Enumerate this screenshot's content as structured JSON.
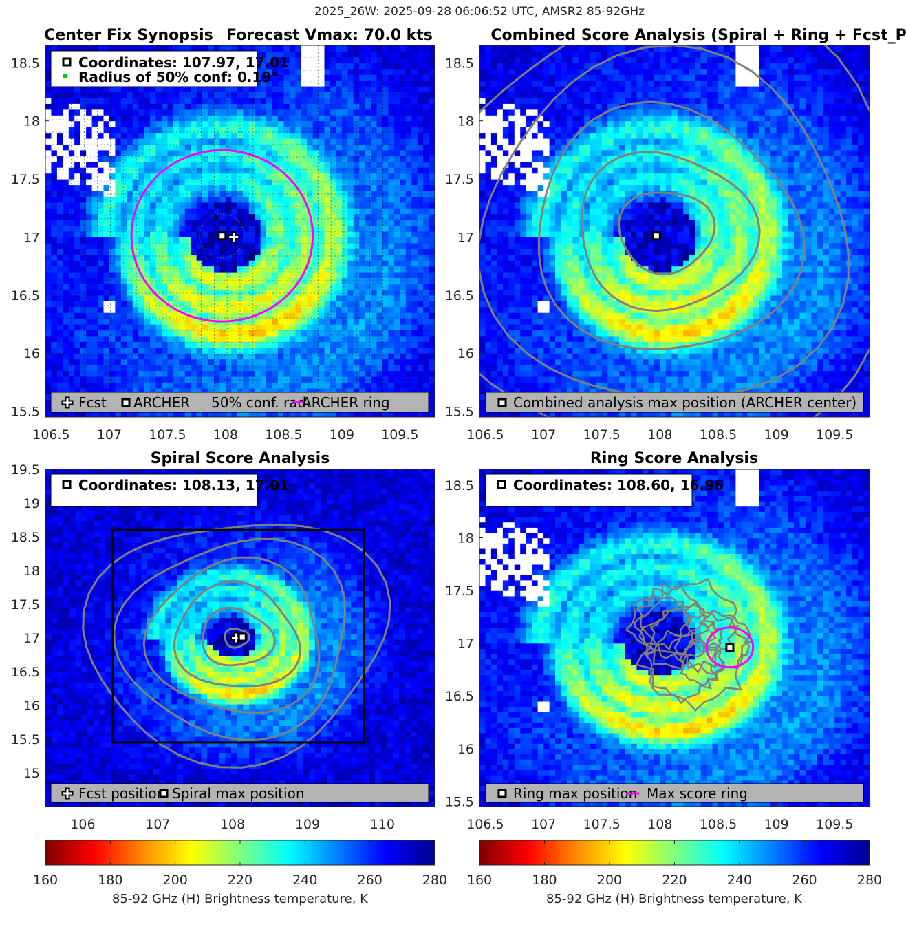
{
  "figure": {
    "suptitle": "2025_26W: 2025-09-28 06:06:52 UTC, AMSR2 85-92GHz"
  },
  "colorbar": {
    "ticks": [
      "160",
      "180",
      "200",
      "220",
      "240",
      "260",
      "280"
    ],
    "label": "85-92 GHz (H) Brightness temperature, K",
    "stops": [
      "#7f0000",
      "#ff0000",
      "#ff8c00",
      "#ffff00",
      "#7fff7f",
      "#00ffff",
      "#0080ff",
      "#0000ff",
      "#00008f"
    ]
  },
  "colors": {
    "magenta": "#ff00ff",
    "contour": "#808080",
    "legend_bg": "#b3b3b3",
    "marker_green": "#00cc00"
  },
  "chart_data": [
    {
      "type": "heatmap",
      "title_left": "Center Fix Synopsis",
      "title_right": "Forecast Vmax: 70.0 kts",
      "xlim": [
        106.45,
        109.8
      ],
      "ylim": [
        15.45,
        18.65
      ],
      "xticks": [
        "106.5",
        "107",
        "107.5",
        "108",
        "108.5",
        "109",
        "109.5"
      ],
      "yticks": [
        "15.5",
        "16",
        "16.5",
        "17",
        "17.5",
        "18",
        "18.5"
      ],
      "info": {
        "coords": "Coordinates: 107.97, 17.01",
        "radius": "Radius of 50% conf: 0.19°"
      },
      "legend": [
        "Fcst",
        "ARCHER",
        "50% conf. rad.",
        "ARCHER ring"
      ],
      "archer_center": [
        107.97,
        17.01
      ],
      "forecast_position": [
        108.07,
        17.0
      ],
      "confidence_radius_deg": 0.19,
      "ring_radius_deg": 0.78
    },
    {
      "type": "heatmap",
      "title": "Combined Score Analysis (Spiral + Ring + Fcst_Pe",
      "xlim": [
        106.45,
        109.8
      ],
      "ylim": [
        15.45,
        18.65
      ],
      "xticks": [
        "106.5",
        "107",
        "107.5",
        "108",
        "108.5",
        "109",
        "109.5"
      ],
      "yticks": [
        "15.5",
        "16",
        "16.5",
        "17",
        "17.5",
        "18",
        "18.5"
      ],
      "legend": [
        "Combined analysis max position (ARCHER center)"
      ],
      "max_position": [
        107.97,
        17.01
      ]
    },
    {
      "type": "heatmap",
      "title": "Spiral Score Analysis",
      "xlim": [
        105.5,
        110.7
      ],
      "ylim": [
        14.5,
        19.5
      ],
      "xticks": [
        "106",
        "107",
        "108",
        "109",
        "110"
      ],
      "yticks": [
        "15",
        "15.5",
        "16",
        "16.5",
        "17",
        "17.5",
        "18",
        "18.5",
        "19",
        "19.5"
      ],
      "info": {
        "coords": "Coordinates: 108.13, 17.01"
      },
      "legend": [
        "Fcst position",
        "Spiral max position"
      ],
      "spiral_max": [
        108.13,
        17.01
      ],
      "forecast_position": [
        108.05,
        17.0
      ],
      "search_box": {
        "x": [
          106.4,
          109.75
        ],
        "y": [
          15.45,
          18.6
        ]
      }
    },
    {
      "type": "heatmap",
      "title": "Ring Score Analysis",
      "xlim": [
        106.45,
        109.8
      ],
      "ylim": [
        15.45,
        18.65
      ],
      "xticks": [
        "106.5",
        "107",
        "107.5",
        "108",
        "108.5",
        "109",
        "109.5"
      ],
      "yticks": [
        "15.5",
        "16",
        "16.5",
        "17",
        "17.5",
        "18",
        "18.5"
      ],
      "info": {
        "coords": "Coordinates: 108.60, 16.96"
      },
      "legend": [
        "Ring max position",
        "Max score ring"
      ],
      "ring_max": [
        108.6,
        16.96
      ],
      "ring_radius_deg": 0.2
    }
  ]
}
